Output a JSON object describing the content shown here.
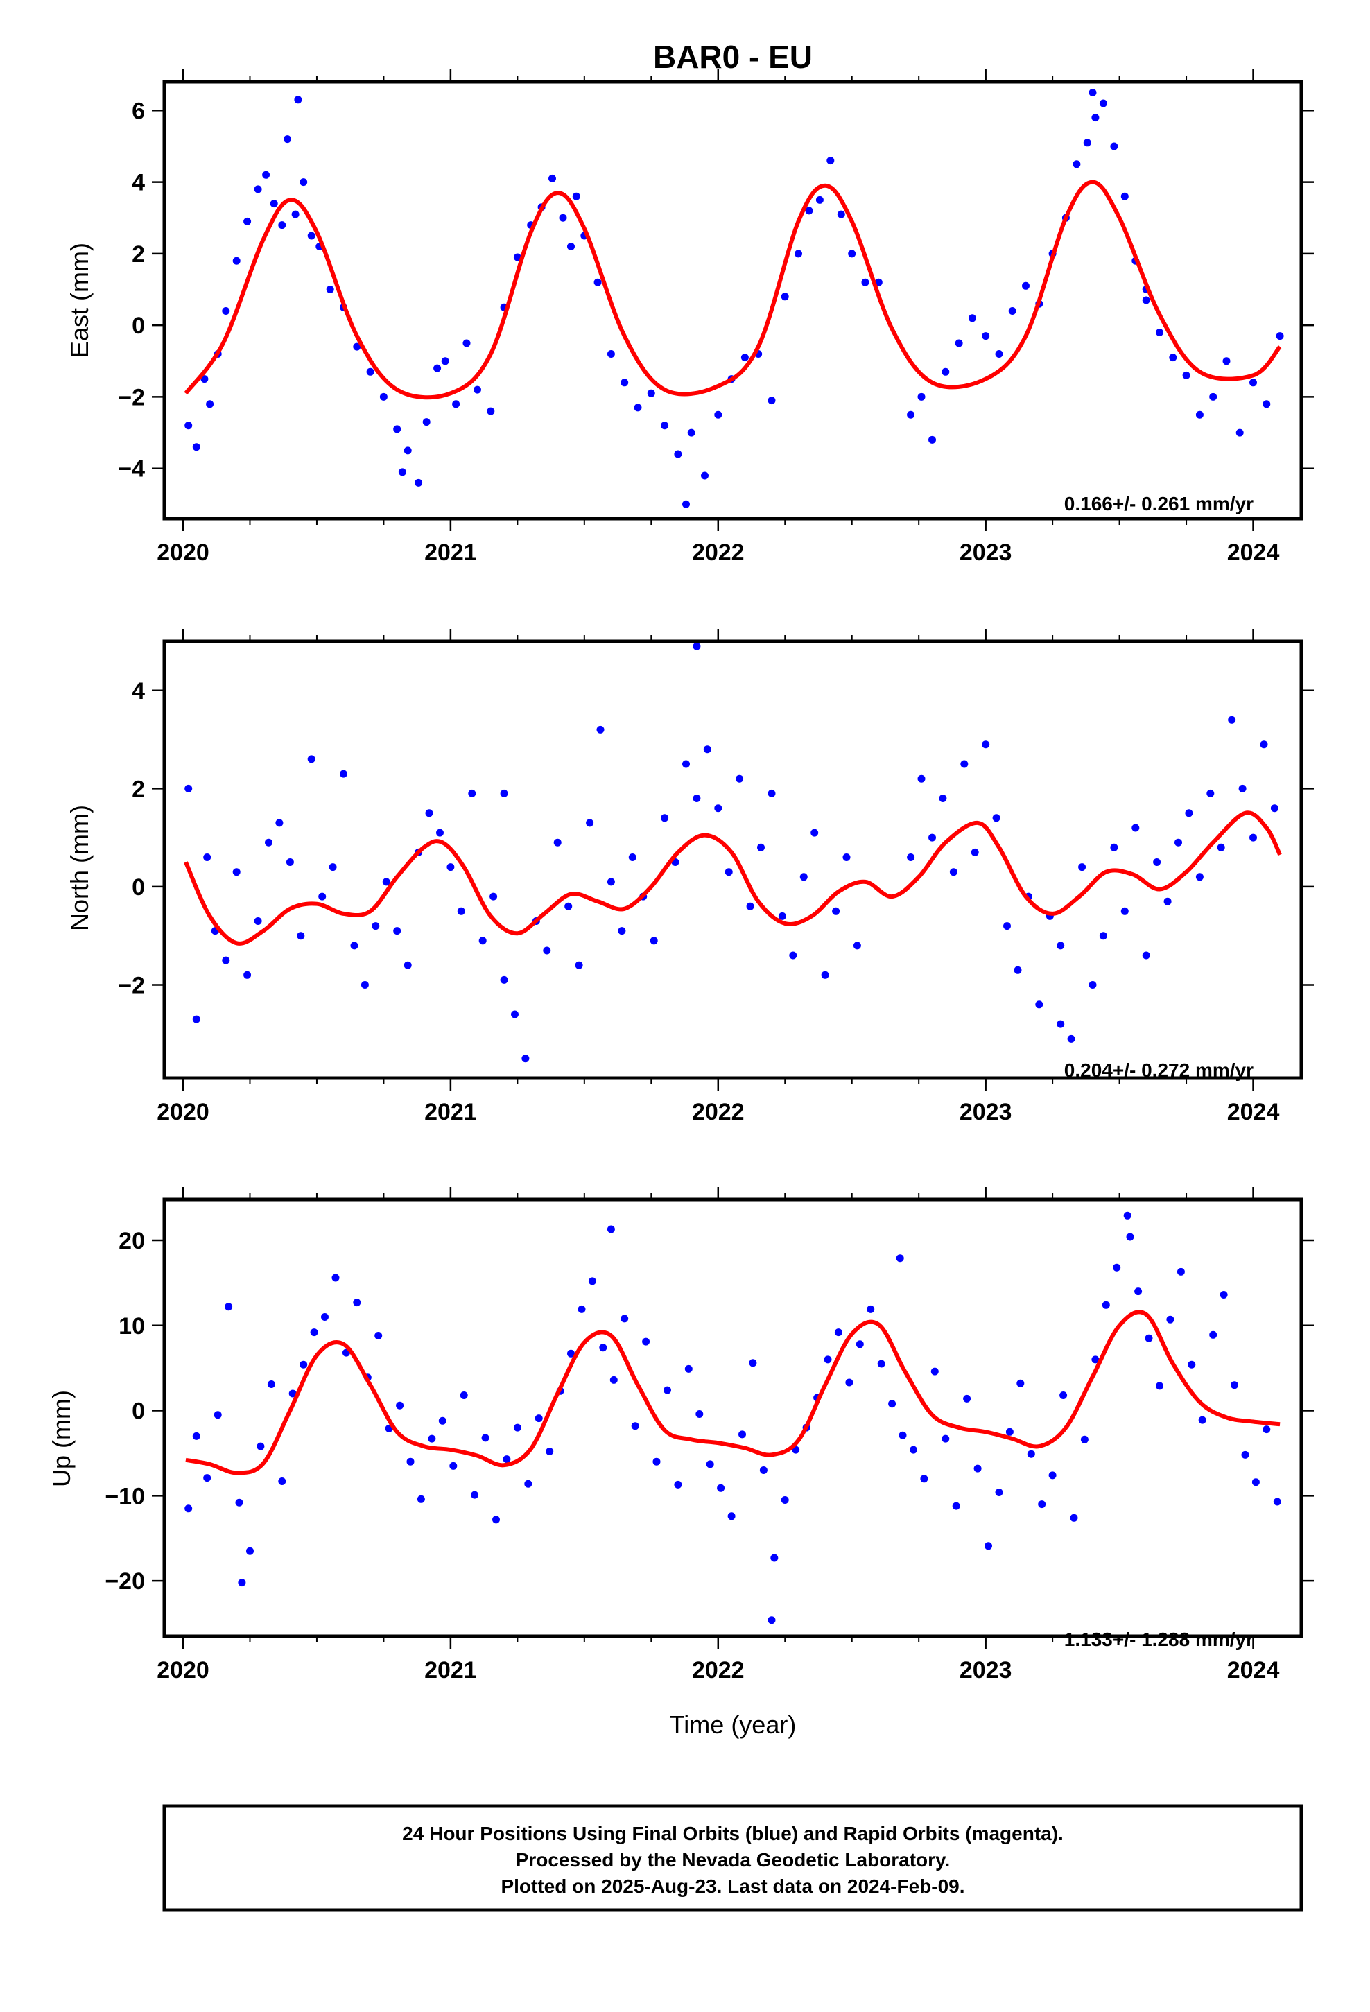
{
  "title": "BAR0 - EU",
  "x_axis": {
    "label": "Time (year)",
    "ticks": [
      "2020",
      "2021",
      "2022",
      "2023",
      "2024"
    ]
  },
  "footer": {
    "line1": "24 Hour Positions Using Final Orbits (blue) and Rapid Orbits (magenta).",
    "line2": "Processed by the Nevada Geodetic Laboratory.",
    "line3": "Plotted on 2025-Aug-23. Last data on 2024-Feb-09."
  },
  "colors": {
    "points": "#0000ff",
    "fit": "#ff0000",
    "frame": "#000000"
  },
  "chart_data": [
    {
      "type": "scatter",
      "ylabel": "East (mm)",
      "xlim": [
        2019.93,
        2024.18
      ],
      "ylim": [
        -5.4,
        6.8
      ],
      "yticks": [
        -4,
        -2,
        0,
        2,
        4,
        6
      ],
      "ytick_labels": [
        "−4",
        "−2",
        "0",
        "2",
        "4",
        "6"
      ],
      "xticks": [
        2020,
        2021,
        2022,
        2023,
        2024
      ],
      "xtick_labels": [
        "2020",
        "2021",
        "2022",
        "2023",
        "2024"
      ],
      "rate": "0.166+/- 0.261 mm/yr",
      "fit_series": {
        "x": [
          2020.01,
          2020.15,
          2020.3,
          2020.4,
          2020.5,
          2020.65,
          2020.8,
          2021.0,
          2021.15,
          2021.3,
          2021.4,
          2021.5,
          2021.65,
          2021.8,
          2022.0,
          2022.15,
          2022.3,
          2022.4,
          2022.5,
          2022.65,
          2022.8,
          2023.0,
          2023.15,
          2023.3,
          2023.4,
          2023.5,
          2023.65,
          2023.8,
          2024.0,
          2024.1
        ],
        "y": [
          -1.9,
          -0.5,
          2.4,
          3.5,
          2.6,
          -0.3,
          -1.8,
          -1.9,
          -0.8,
          2.6,
          3.7,
          2.7,
          -0.3,
          -1.8,
          -1.7,
          -0.6,
          2.9,
          3.9,
          2.9,
          -0.1,
          -1.6,
          -1.5,
          -0.3,
          3.0,
          4.0,
          3.0,
          0.3,
          -1.3,
          -1.4,
          -0.6
        ]
      },
      "points": {
        "x": [
          2020.02,
          2020.05,
          2020.08,
          2020.1,
          2020.13,
          2020.16,
          2020.2,
          2020.24,
          2020.28,
          2020.31,
          2020.34,
          2020.37,
          2020.39,
          2020.42,
          2020.45,
          2020.48,
          2020.51,
          2020.55,
          2020.6,
          2020.65,
          2020.7,
          2020.75,
          2020.8,
          2020.84,
          2020.88,
          2020.91,
          2020.95,
          2020.98,
          2021.02,
          2021.06,
          2021.1,
          2021.15,
          2021.2,
          2021.25,
          2021.3,
          2021.34,
          2021.38,
          2021.42,
          2021.45,
          2021.5,
          2021.55,
          2021.6,
          2021.65,
          2021.7,
          2021.75,
          2021.8,
          2021.85,
          2021.9,
          2021.95,
          2022.0,
          2022.05,
          2022.1,
          2022.15,
          2022.2,
          2022.25,
          2022.3,
          2022.34,
          2022.38,
          2022.42,
          2022.46,
          2022.5,
          2022.55,
          2022.72,
          2022.76,
          2022.8,
          2022.85,
          2022.9,
          2022.95,
          2023.0,
          2023.05,
          2023.1,
          2023.15,
          2023.2,
          2023.25,
          2023.3,
          2023.34,
          2023.38,
          2023.41,
          2023.44,
          2023.48,
          2023.52,
          2023.56,
          2023.6,
          2023.65,
          2023.7,
          2023.75,
          2023.8,
          2023.85,
          2023.9,
          2023.95,
          2024.0,
          2024.05,
          2024.1,
          2020.43,
          2021.88,
          2023.4,
          2020.82,
          2022.6,
          2021.47,
          2023.6
        ],
        "y": [
          -2.8,
          -3.4,
          -1.5,
          -2.2,
          -0.8,
          0.4,
          1.8,
          2.9,
          3.8,
          4.2,
          3.4,
          2.8,
          5.2,
          3.1,
          4.0,
          2.5,
          2.2,
          1.0,
          0.5,
          -0.6,
          -1.3,
          -2.0,
          -2.9,
          -3.5,
          -4.4,
          -2.7,
          -1.2,
          -1.0,
          -2.2,
          -0.5,
          -1.8,
          -2.4,
          0.5,
          1.9,
          2.8,
          3.3,
          4.1,
          3.0,
          2.2,
          2.5,
          1.2,
          -0.8,
          -1.6,
          -2.3,
          -1.9,
          -2.8,
          -3.6,
          -3.0,
          -4.2,
          -2.5,
          -1.5,
          -0.9,
          -0.8,
          -2.1,
          0.8,
          2.0,
          3.2,
          3.5,
          4.6,
          3.1,
          2.0,
          1.2,
          -2.5,
          -2.0,
          -3.2,
          -1.3,
          -0.5,
          0.2,
          -0.3,
          -0.8,
          0.4,
          1.1,
          0.6,
          2.0,
          3.0,
          4.5,
          5.1,
          5.8,
          6.2,
          5.0,
          3.6,
          1.8,
          1.0,
          -0.2,
          -0.9,
          -1.4,
          -2.5,
          -2.0,
          -1.0,
          -3.0,
          -1.6,
          -2.2,
          -0.3,
          6.3,
          -5.0,
          6.5,
          -4.1,
          1.2,
          3.6,
          0.7
        ]
      }
    },
    {
      "type": "scatter",
      "ylabel": "North (mm)",
      "xlim": [
        2019.93,
        2024.18
      ],
      "ylim": [
        -3.9,
        5.0
      ],
      "yticks": [
        -2,
        0,
        2,
        4
      ],
      "ytick_labels": [
        "−2",
        "0",
        "2",
        "4"
      ],
      "xticks": [
        2020,
        2021,
        2022,
        2023,
        2024
      ],
      "xtick_labels": [
        "2020",
        "2021",
        "2022",
        "2023",
        "2024"
      ],
      "rate": "0.204+/- 0.272 mm/yr",
      "fit_series": {
        "x": [
          2020.01,
          2020.1,
          2020.2,
          2020.3,
          2020.4,
          2020.5,
          2020.6,
          2020.7,
          2020.8,
          2020.9,
          2020.97,
          2021.05,
          2021.15,
          2021.25,
          2021.35,
          2021.45,
          2021.55,
          2021.65,
          2021.75,
          2021.85,
          2021.95,
          2022.05,
          2022.15,
          2022.25,
          2022.35,
          2022.45,
          2022.55,
          2022.65,
          2022.75,
          2022.85,
          2022.97,
          2023.05,
          2023.15,
          2023.25,
          2023.35,
          2023.45,
          2023.55,
          2023.65,
          2023.75,
          2023.85,
          2023.97,
          2024.05,
          2024.1
        ],
        "y": [
          0.5,
          -0.6,
          -1.15,
          -0.9,
          -0.45,
          -0.35,
          -0.55,
          -0.5,
          0.2,
          0.8,
          0.9,
          0.4,
          -0.6,
          -0.95,
          -0.55,
          -0.15,
          -0.3,
          -0.45,
          0.0,
          0.7,
          1.05,
          0.7,
          -0.3,
          -0.75,
          -0.6,
          -0.1,
          0.1,
          -0.2,
          0.2,
          0.9,
          1.3,
          0.8,
          -0.2,
          -0.55,
          -0.2,
          0.3,
          0.25,
          -0.05,
          0.3,
          0.9,
          1.5,
          1.2,
          0.65
        ]
      },
      "points": {
        "x": [
          2020.02,
          2020.05,
          2020.09,
          2020.12,
          2020.16,
          2020.2,
          2020.24,
          2020.28,
          2020.32,
          2020.36,
          2020.4,
          2020.44,
          2020.48,
          2020.52,
          2020.56,
          2020.6,
          2020.64,
          2020.68,
          2020.72,
          2020.76,
          2020.8,
          2020.84,
          2020.88,
          2020.92,
          2020.96,
          2021.0,
          2021.04,
          2021.08,
          2021.12,
          2021.16,
          2021.2,
          2021.24,
          2021.28,
          2021.32,
          2021.36,
          2021.4,
          2021.44,
          2021.48,
          2021.52,
          2021.56,
          2021.6,
          2021.64,
          2021.68,
          2021.72,
          2021.76,
          2021.8,
          2021.84,
          2021.88,
          2021.92,
          2021.96,
          2022.0,
          2022.04,
          2022.08,
          2022.12,
          2022.16,
          2022.2,
          2022.24,
          2022.28,
          2022.32,
          2022.36,
          2022.4,
          2022.44,
          2022.48,
          2022.52,
          2022.72,
          2022.76,
          2022.8,
          2022.84,
          2022.88,
          2022.92,
          2022.96,
          2023.0,
          2023.04,
          2023.08,
          2023.12,
          2023.16,
          2023.2,
          2023.24,
          2023.28,
          2023.32,
          2023.36,
          2023.4,
          2023.44,
          2023.48,
          2023.52,
          2023.56,
          2023.6,
          2023.64,
          2023.68,
          2023.72,
          2023.76,
          2023.8,
          2023.84,
          2023.88,
          2023.92,
          2023.96,
          2024.0,
          2024.04,
          2024.08,
          2021.92,
          2021.2,
          2023.28
        ],
        "y": [
          2.0,
          -2.7,
          0.6,
          -0.9,
          -1.5,
          0.3,
          -1.8,
          -0.7,
          0.9,
          1.3,
          0.5,
          -1.0,
          2.6,
          -0.2,
          0.4,
          2.3,
          -1.2,
          -2.0,
          -0.8,
          0.1,
          -0.9,
          -1.6,
          0.7,
          1.5,
          1.1,
          0.4,
          -0.5,
          1.9,
          -1.1,
          -0.2,
          -1.9,
          -2.6,
          -3.5,
          -0.7,
          -1.3,
          0.9,
          -0.4,
          -1.6,
          1.3,
          3.2,
          0.1,
          -0.9,
          0.6,
          -0.2,
          -1.1,
          1.4,
          0.5,
          2.5,
          1.8,
          2.8,
          1.6,
          0.3,
          2.2,
          -0.4,
          0.8,
          1.9,
          -0.6,
          -1.4,
          0.2,
          1.1,
          -1.8,
          -0.5,
          0.6,
          -1.2,
          0.6,
          2.2,
          1.0,
          1.8,
          0.3,
          2.5,
          0.7,
          2.9,
          1.4,
          -0.8,
          -1.7,
          -0.2,
          -2.4,
          -0.6,
          -1.2,
          -3.1,
          0.4,
          -2.0,
          -1.0,
          0.8,
          -0.5,
          1.2,
          -1.4,
          0.5,
          -0.3,
          0.9,
          1.5,
          0.2,
          1.9,
          0.8,
          3.4,
          2.0,
          1.0,
          2.9,
          1.6,
          4.9,
          1.9,
          -2.8
        ]
      }
    },
    {
      "type": "scatter",
      "ylabel": "Up (mm)",
      "xlim": [
        2019.93,
        2024.18
      ],
      "ylim": [
        -26.5,
        24.8
      ],
      "yticks": [
        -20,
        -10,
        0,
        10,
        20
      ],
      "ytick_labels": [
        "−20",
        "−10",
        "0",
        "10",
        "20"
      ],
      "xticks": [
        2020,
        2021,
        2022,
        2023,
        2024
      ],
      "xtick_labels": [
        "2020",
        "2021",
        "2022",
        "2023",
        "2024"
      ],
      "rate": "1.133+/- 1.288 mm/yr",
      "fit_series": {
        "x": [
          2020.01,
          2020.1,
          2020.2,
          2020.3,
          2020.4,
          2020.5,
          2020.6,
          2020.7,
          2020.8,
          2020.9,
          2021.0,
          2021.1,
          2021.2,
          2021.3,
          2021.4,
          2021.5,
          2021.6,
          2021.7,
          2021.8,
          2021.9,
          2022.0,
          2022.1,
          2022.2,
          2022.3,
          2022.4,
          2022.5,
          2022.6,
          2022.7,
          2022.8,
          2022.9,
          2023.0,
          2023.1,
          2023.2,
          2023.3,
          2023.4,
          2023.5,
          2023.6,
          2023.7,
          2023.8,
          2023.9,
          2024.0,
          2024.1
        ],
        "y": [
          -5.8,
          -6.3,
          -7.3,
          -6.2,
          0.0,
          6.5,
          7.8,
          3.0,
          -2.5,
          -4.2,
          -4.6,
          -5.3,
          -6.4,
          -4.5,
          2.0,
          8.0,
          8.8,
          3.0,
          -2.3,
          -3.4,
          -3.8,
          -4.4,
          -5.2,
          -3.5,
          3.0,
          9.0,
          10.1,
          4.5,
          -0.5,
          -2.0,
          -2.5,
          -3.3,
          -4.2,
          -2.0,
          4.0,
          10.0,
          11.3,
          5.5,
          1.0,
          -0.8,
          -1.3,
          -1.6
        ]
      },
      "points": {
        "x": [
          2020.02,
          2020.05,
          2020.09,
          2020.13,
          2020.17,
          2020.21,
          2020.25,
          2020.29,
          2020.33,
          2020.37,
          2020.41,
          2020.45,
          2020.49,
          2020.53,
          2020.57,
          2020.61,
          2020.65,
          2020.69,
          2020.73,
          2020.77,
          2020.81,
          2020.85,
          2020.89,
          2020.93,
          2020.97,
          2021.01,
          2021.05,
          2021.09,
          2021.13,
          2021.17,
          2021.21,
          2021.25,
          2021.29,
          2021.33,
          2021.37,
          2021.41,
          2021.45,
          2021.49,
          2021.53,
          2021.57,
          2021.61,
          2021.65,
          2021.69,
          2021.73,
          2021.77,
          2021.81,
          2021.85,
          2021.89,
          2021.93,
          2021.97,
          2022.01,
          2022.05,
          2022.09,
          2022.13,
          2022.17,
          2022.21,
          2022.25,
          2022.29,
          2022.33,
          2022.37,
          2022.41,
          2022.45,
          2022.49,
          2022.53,
          2022.57,
          2022.61,
          2022.65,
          2022.69,
          2022.73,
          2022.77,
          2022.81,
          2022.85,
          2022.89,
          2022.93,
          2022.97,
          2023.01,
          2023.05,
          2023.09,
          2023.13,
          2023.17,
          2023.21,
          2023.25,
          2023.29,
          2023.33,
          2023.37,
          2023.41,
          2023.45,
          2023.49,
          2023.53,
          2023.57,
          2023.61,
          2023.65,
          2023.69,
          2023.73,
          2023.77,
          2023.81,
          2023.85,
          2023.89,
          2023.93,
          2023.97,
          2024.01,
          2024.05,
          2024.09,
          2020.22,
          2021.6,
          2022.2,
          2023.54,
          2022.68
        ],
        "y": [
          -11.5,
          -3.0,
          -7.9,
          -0.5,
          12.2,
          -10.8,
          -16.5,
          -4.2,
          3.1,
          -8.3,
          2.0,
          5.4,
          9.2,
          11.0,
          15.6,
          6.8,
          12.7,
          3.9,
          8.8,
          -2.1,
          0.6,
          -6.0,
          -10.4,
          -3.3,
          -1.2,
          -6.5,
          1.8,
          -9.9,
          -3.2,
          -12.8,
          -5.7,
          -2.0,
          -8.6,
          -0.9,
          -4.8,
          2.3,
          6.7,
          11.9,
          15.2,
          7.4,
          3.6,
          10.8,
          -1.8,
          8.1,
          -6.0,
          2.4,
          -8.7,
          4.9,
          -0.4,
          -6.3,
          -9.1,
          -12.4,
          -2.8,
          5.6,
          -7.0,
          -17.3,
          -10.5,
          -4.6,
          -2.0,
          1.5,
          6.0,
          9.2,
          3.3,
          7.8,
          11.9,
          5.5,
          0.8,
          -2.9,
          -4.6,
          -8.0,
          4.6,
          -3.3,
          -11.2,
          1.4,
          -6.8,
          -15.9,
          -9.6,
          -2.5,
          3.2,
          -5.1,
          -11.0,
          -7.6,
          1.8,
          -12.6,
          -3.4,
          6.0,
          12.4,
          16.8,
          22.9,
          14.0,
          8.5,
          2.9,
          10.7,
          16.3,
          5.4,
          -1.1,
          8.9,
          13.6,
          3.0,
          -5.2,
          -8.4,
          -2.2,
          -10.7,
          -20.2,
          21.3,
          -24.6,
          20.4,
          17.9
        ]
      }
    }
  ]
}
